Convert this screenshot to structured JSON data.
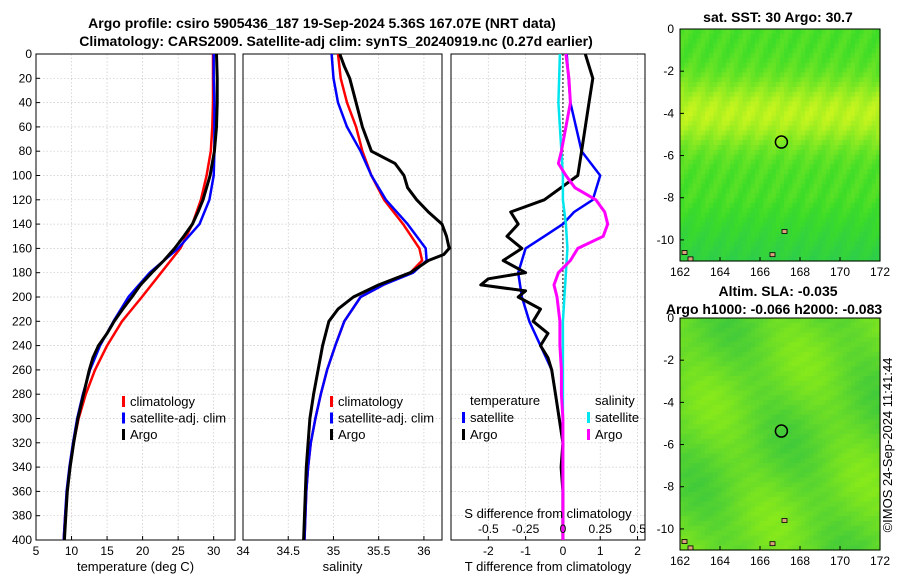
{
  "title_line1": "Argo profile: csiro 5905436_187 19-Sep-2024 5.36S 167.07E (NRT data)",
  "title_line2": "Climatology: CARS2009. Satellite-adj clim: synTS_20240919.nc (0.27d earlier)",
  "side_label": "©IMOS 24-Sep-2024 11:41:44",
  "colors": {
    "climatology": "#ff0000",
    "satellite": "#0000ff",
    "argo": "#000000",
    "sat_diff_salinity": "#00e5ee",
    "argo_diff_salinity": "#ff00ff"
  },
  "chart_data": [
    {
      "type": "line",
      "id": "temperature",
      "xlabel": "temperature (deg C)",
      "xlim": [
        5,
        33
      ],
      "xticks": [
        5,
        10,
        15,
        20,
        25,
        30
      ],
      "ylim": [
        0,
        400
      ],
      "yticks": [
        0,
        20,
        40,
        60,
        80,
        100,
        120,
        140,
        160,
        180,
        200,
        220,
        240,
        260,
        280,
        300,
        320,
        340,
        360,
        380,
        400
      ],
      "legend": [
        "climatology",
        "satellite-adj. clim",
        "Argo"
      ],
      "series": [
        {
          "name": "climatology",
          "depth": [
            0,
            20,
            40,
            60,
            80,
            100,
            120,
            140,
            160,
            180,
            200,
            220,
            240,
            260,
            280,
            300,
            320,
            340,
            360,
            380,
            400
          ],
          "values": [
            29.9,
            29.9,
            29.9,
            29.8,
            29.6,
            29.0,
            28.2,
            27.0,
            25.3,
            22.6,
            19.9,
            17.1,
            15.0,
            13.3,
            12.0,
            11.0,
            10.3,
            9.8,
            9.4,
            9.1,
            8.9
          ]
        },
        {
          "name": "satellite-adj. clim",
          "depth": [
            0,
            20,
            40,
            60,
            80,
            100,
            120,
            140,
            160,
            180,
            200,
            220,
            240,
            260,
            280,
            300,
            320,
            340,
            360,
            380,
            400
          ],
          "values": [
            30.0,
            30.0,
            30.1,
            30.1,
            30.1,
            30.0,
            29.4,
            28.0,
            25.0,
            21.0,
            18.0,
            15.9,
            14.0,
            12.6,
            11.6,
            10.8,
            10.2,
            9.7,
            9.3,
            9.1,
            8.9
          ]
        },
        {
          "name": "Argo",
          "depth": [
            0,
            20,
            40,
            60,
            80,
            100,
            120,
            130,
            140,
            150,
            160,
            170,
            180,
            190,
            200,
            210,
            220,
            230,
            240,
            250,
            260,
            280,
            300,
            320,
            340,
            360,
            380,
            400
          ],
          "values": [
            30.4,
            30.5,
            30.5,
            30.4,
            30.1,
            29.5,
            28.5,
            27.8,
            27.0,
            25.8,
            24.5,
            23.0,
            21.3,
            19.7,
            18.5,
            17.2,
            16.0,
            15.0,
            13.8,
            13.0,
            12.5,
            11.7,
            10.9,
            10.3,
            9.8,
            9.4,
            9.2,
            9.0
          ]
        }
      ]
    },
    {
      "type": "line",
      "id": "salinity",
      "xlabel": "salinity",
      "xlim": [
        34,
        36.2
      ],
      "xticks": [
        34,
        34.5,
        35,
        35.5,
        36
      ],
      "xticklabels": [
        "34",
        "34.5",
        "35",
        "35.5",
        "36"
      ],
      "ylim": [
        0,
        400
      ],
      "legend": [
        "climatology",
        "satellite-adj. clim",
        "Argo"
      ],
      "series": [
        {
          "name": "climatology",
          "depth": [
            0,
            20,
            40,
            60,
            80,
            100,
            120,
            140,
            160,
            170,
            180,
            190,
            200,
            220,
            240,
            260,
            280,
            300,
            320,
            340,
            360,
            380,
            400
          ],
          "values": [
            35.05,
            35.08,
            35.15,
            35.25,
            35.32,
            35.42,
            35.56,
            35.77,
            35.95,
            35.98,
            35.85,
            35.55,
            35.3,
            35.12,
            35.02,
            34.93,
            34.86,
            34.8,
            34.75,
            34.72,
            34.7,
            34.69,
            34.68
          ]
        },
        {
          "name": "satellite-adj. clim",
          "depth": [
            0,
            20,
            40,
            60,
            80,
            100,
            120,
            140,
            160,
            170,
            180,
            190,
            200,
            220,
            240,
            260,
            280,
            300,
            320,
            340,
            360,
            380,
            400
          ],
          "values": [
            34.98,
            35.0,
            35.05,
            35.15,
            35.3,
            35.42,
            35.58,
            35.82,
            36.02,
            36.03,
            35.88,
            35.55,
            35.3,
            35.12,
            35.02,
            34.93,
            34.86,
            34.8,
            34.75,
            34.72,
            34.7,
            34.69,
            34.68
          ]
        },
        {
          "name": "Argo",
          "depth": [
            0,
            10,
            20,
            40,
            60,
            80,
            90,
            100,
            110,
            120,
            130,
            140,
            150,
            160,
            165,
            170,
            180,
            190,
            200,
            210,
            220,
            240,
            260,
            280,
            300,
            320,
            340,
            360,
            380,
            400
          ],
          "values": [
            35.07,
            35.12,
            35.18,
            35.25,
            35.32,
            35.42,
            35.68,
            35.78,
            35.82,
            35.92,
            36.05,
            36.2,
            36.25,
            36.28,
            36.22,
            36.05,
            35.85,
            35.5,
            35.22,
            35.05,
            34.95,
            34.88,
            34.83,
            34.78,
            34.74,
            34.72,
            34.7,
            34.69,
            34.68,
            34.67
          ]
        }
      ]
    },
    {
      "type": "line",
      "id": "differences",
      "xlabel": "T difference from climatology",
      "xlabel_top": "S difference from climatology",
      "xlim": [
        -3,
        2.2
      ],
      "xticks": [
        -2,
        -1,
        0,
        1,
        2
      ],
      "s_scale": 4,
      "s_ticklabels": [
        "-0.5",
        "-0.25",
        "0",
        "0.25",
        "0.5"
      ],
      "s_ticks": [
        -0.5,
        -0.25,
        0,
        0.25,
        0.5
      ],
      "ylim": [
        0,
        400
      ],
      "legend_temperature_title": "temperature",
      "legend_salinity_title": "salinity",
      "legend": [
        "satellite",
        "Argo"
      ],
      "series": [
        {
          "name": "satellite temperature",
          "depth": [
            0,
            40,
            80,
            100,
            120,
            130,
            140,
            150,
            160,
            180,
            200,
            220,
            240,
            260,
            280,
            300,
            320,
            340,
            360,
            380,
            400
          ],
          "values": [
            0.1,
            0.2,
            0.5,
            1.0,
            0.8,
            0.3,
            0.0,
            -0.5,
            -1.0,
            -1.2,
            -1.1,
            -0.9,
            -0.6,
            -0.3,
            -0.2,
            -0.1,
            0,
            0,
            0,
            0,
            0
          ]
        },
        {
          "name": "Argo temperature",
          "depth": [
            0,
            20,
            40,
            60,
            80,
            100,
            120,
            130,
            140,
            150,
            160,
            170,
            180,
            185,
            190,
            195,
            200,
            210,
            220,
            230,
            240,
            250,
            260,
            280,
            300,
            320,
            340,
            360,
            380,
            400
          ],
          "values": [
            0.6,
            0.8,
            0.7,
            0.6,
            0.5,
            0.4,
            -0.5,
            -1.4,
            -1.2,
            -1.5,
            -1.1,
            -1.6,
            -1.0,
            -2.0,
            -2.2,
            -1.0,
            -1.2,
            -0.6,
            -0.8,
            -0.4,
            -0.6,
            -0.4,
            -0.3,
            -0.2,
            -0.1,
            0,
            -0.05,
            0,
            0,
            0
          ]
        },
        {
          "name": "satellite salinity",
          "depth": [
            0,
            40,
            80,
            100,
            120,
            140,
            160,
            180,
            200,
            220,
            260,
            300,
            340,
            400
          ],
          "values": [
            -0.02,
            -0.03,
            -0.01,
            0,
            0,
            0.02,
            0.03,
            0.02,
            0.01,
            0,
            0,
            0,
            0,
            0
          ]
        },
        {
          "name": "Argo salinity",
          "depth": [
            0,
            20,
            40,
            60,
            80,
            90,
            100,
            110,
            120,
            130,
            140,
            150,
            160,
            170,
            180,
            190,
            200,
            220,
            240,
            260,
            280,
            300,
            320,
            340,
            360,
            380,
            400
          ],
          "values": [
            0.02,
            0.04,
            0.05,
            0.02,
            -0.01,
            -0.03,
            0.02,
            0.08,
            0.22,
            0.28,
            0.3,
            0.27,
            0.1,
            0.05,
            -0.03,
            -0.06,
            -0.04,
            -0.02,
            -0.02,
            -0.01,
            -0.01,
            0,
            0,
            0,
            0,
            0,
            0
          ]
        }
      ]
    },
    {
      "type": "heatmap",
      "id": "sst_map",
      "title": "sat. SST: 30 Argo: 30.7",
      "xlim": [
        162,
        172
      ],
      "xticks": [
        162,
        164,
        166,
        168,
        170,
        172
      ],
      "ylim": [
        -11,
        0
      ],
      "yticks": [
        0,
        -2,
        -4,
        -6,
        -8,
        -10
      ],
      "argo_lon": 167.07,
      "argo_lat": -5.36
    },
    {
      "type": "heatmap",
      "id": "sla_map",
      "title_line1": "Altim. SLA: -0.035",
      "title_line2": "Argo h1000: -0.066 h2000: -0.083",
      "xlim": [
        162,
        172
      ],
      "xticks": [
        162,
        164,
        166,
        168,
        170,
        172
      ],
      "ylim": [
        -11,
        0
      ],
      "yticks": [
        0,
        -2,
        -4,
        -6,
        -8,
        -10
      ],
      "argo_lon": 167.07,
      "argo_lat": -5.36
    }
  ]
}
